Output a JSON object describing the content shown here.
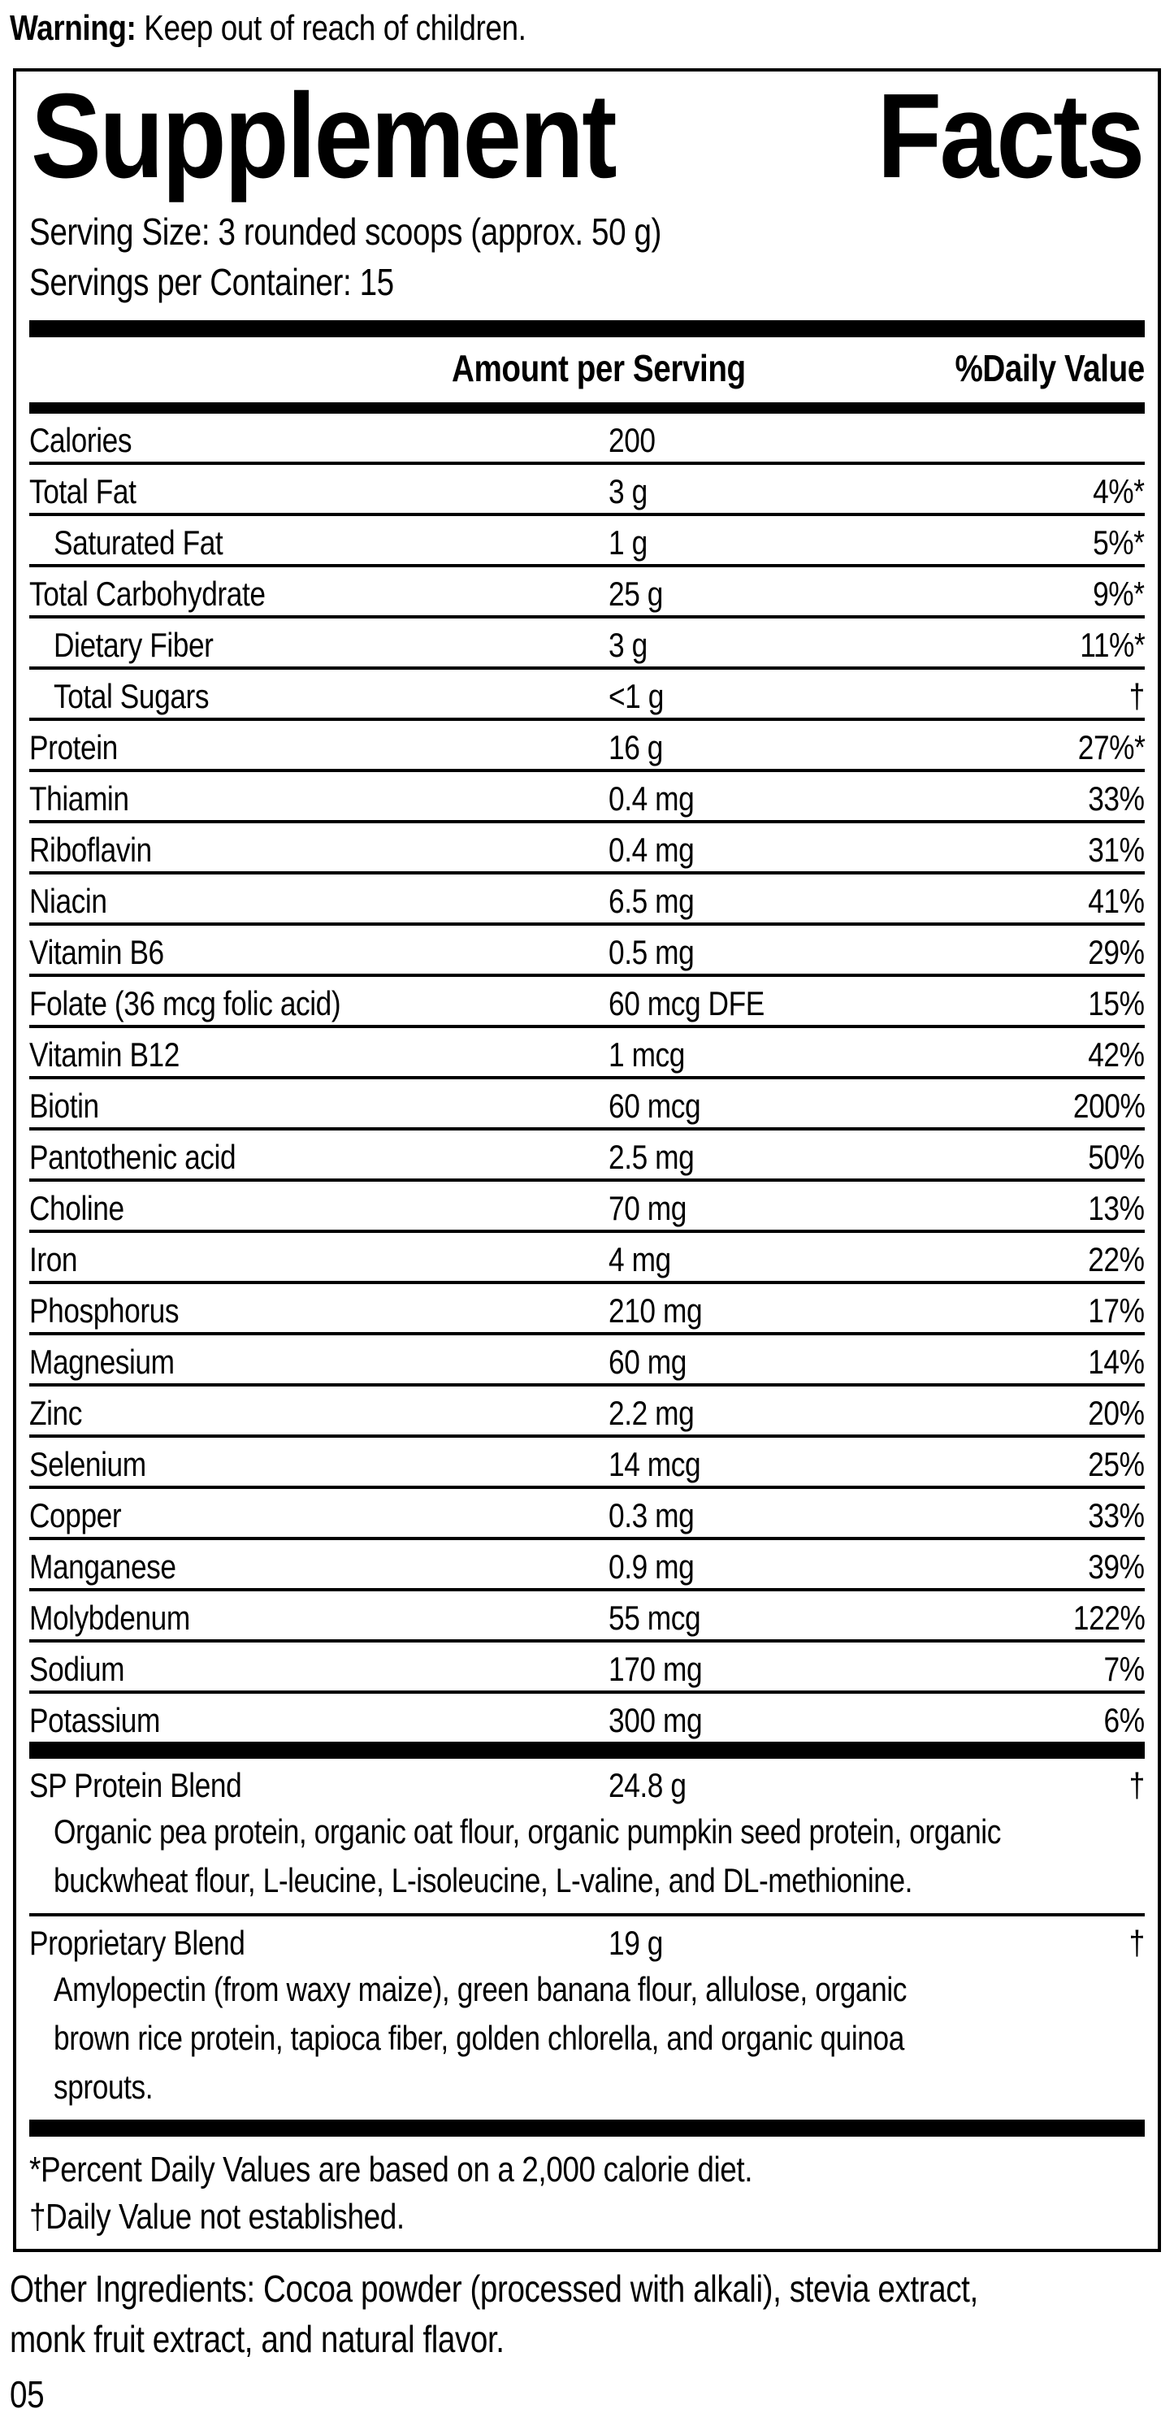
{
  "colors": {
    "ink": "#000000",
    "background": "#ffffff"
  },
  "warning": {
    "prefix": "Warning:",
    "text": " Keep out of reach of children."
  },
  "panel": {
    "title": "Supplement Facts",
    "serving_size": "Serving Size: 3 rounded scoops (approx. 50 g)",
    "servings_per_container": "Servings per Container: 15",
    "columns": {
      "amount": "Amount per Serving",
      "daily_value": "%Daily Value"
    },
    "rows": [
      {
        "label": "Calories",
        "amount": "200",
        "dv": "",
        "indent": false
      },
      {
        "label": "Total Fat",
        "amount": "3 g",
        "dv": "4%*",
        "indent": false
      },
      {
        "label": "Saturated Fat",
        "amount": "1 g",
        "dv": "5%*",
        "indent": true
      },
      {
        "label": "Total Carbohydrate",
        "amount": "25 g",
        "dv": "9%*",
        "indent": false
      },
      {
        "label": "Dietary Fiber",
        "amount": "3 g",
        "dv": "11%*",
        "indent": true
      },
      {
        "label": "Total Sugars",
        "amount": "<1 g",
        "dv": "†",
        "indent": true
      },
      {
        "label": "Protein",
        "amount": "16 g",
        "dv": "27%*",
        "indent": false
      },
      {
        "label": "Thiamin",
        "amount": "0.4 mg",
        "dv": "33%",
        "indent": false
      },
      {
        "label": "Riboflavin",
        "amount": "0.4 mg",
        "dv": "31%",
        "indent": false
      },
      {
        "label": "Niacin",
        "amount": "6.5 mg",
        "dv": "41%",
        "indent": false
      },
      {
        "label": "Vitamin B6",
        "amount": "0.5 mg",
        "dv": "29%",
        "indent": false
      },
      {
        "label": "Folate (36 mcg folic acid)",
        "amount": "60 mcg DFE",
        "dv": "15%",
        "indent": false
      },
      {
        "label": "Vitamin B12",
        "amount": "1 mcg",
        "dv": "42%",
        "indent": false
      },
      {
        "label": "Biotin",
        "amount": "60 mcg",
        "dv": "200%",
        "indent": false
      },
      {
        "label": "Pantothenic acid",
        "amount": "2.5 mg",
        "dv": "50%",
        "indent": false
      },
      {
        "label": "Choline",
        "amount": "70 mg",
        "dv": "13%",
        "indent": false
      },
      {
        "label": "Iron",
        "amount": "4 mg",
        "dv": "22%",
        "indent": false
      },
      {
        "label": "Phosphorus",
        "amount": "210 mg",
        "dv": "17%",
        "indent": false
      },
      {
        "label": "Magnesium",
        "amount": "60 mg",
        "dv": "14%",
        "indent": false
      },
      {
        "label": "Zinc",
        "amount": "2.2 mg",
        "dv": "20%",
        "indent": false
      },
      {
        "label": "Selenium",
        "amount": "14 mcg",
        "dv": "25%",
        "indent": false
      },
      {
        "label": "Copper",
        "amount": "0.3 mg",
        "dv": "33%",
        "indent": false
      },
      {
        "label": "Manganese",
        "amount": "0.9 mg",
        "dv": "39%",
        "indent": false
      },
      {
        "label": "Molybdenum",
        "amount": "55 mcg",
        "dv": "122%",
        "indent": false
      },
      {
        "label": "Sodium",
        "amount": "170 mg",
        "dv": "7%",
        "indent": false
      },
      {
        "label": "Potassium",
        "amount": "300 mg",
        "dv": "6%",
        "indent": false
      }
    ],
    "blends": [
      {
        "name": "SP Protein Blend",
        "amount": "24.8 g",
        "dv": "†",
        "description_lines": [
          "Organic pea protein, organic oat flour, organic pumpkin seed protein, organic",
          "buckwheat flour, L-leucine, L-isoleucine, L-valine, and DL-methionine."
        ]
      },
      {
        "name": "Proprietary Blend",
        "amount": "19 g",
        "dv": "†",
        "description_lines": [
          "Amylopectin (from waxy maize), green banana flour, allulose, organic",
          "brown rice protein, tapioca fiber, golden chlorella, and organic quinoa",
          "sprouts."
        ]
      }
    ],
    "footnotes": [
      "*Percent Daily Values are based on a 2,000 calorie diet.",
      "†Daily Value not established."
    ]
  },
  "other_ingredients_lines": [
    "Other Ingredients: Cocoa powder (processed with alkali), stevia extract,",
    "monk fruit extract, and natural flavor."
  ],
  "page_number": "05"
}
